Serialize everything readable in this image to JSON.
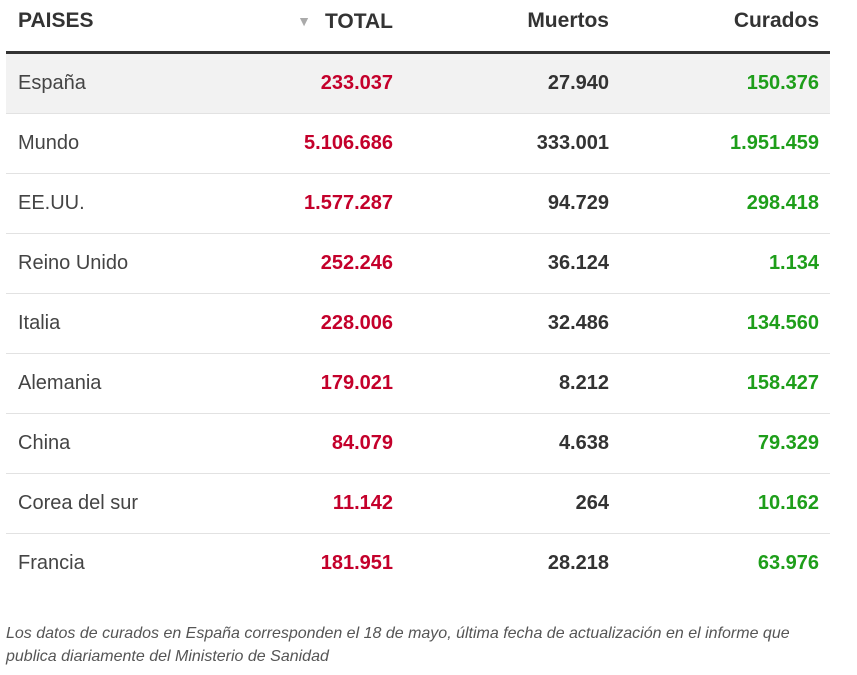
{
  "header": {
    "country": "PAISES",
    "sort_indicator": "▼",
    "total": "TOTAL",
    "deaths": "Muertos",
    "cured": "Curados"
  },
  "rows": [
    {
      "country": "España",
      "total": "233.037",
      "deaths": "27.940",
      "cured": "150.376"
    },
    {
      "country": "Mundo",
      "total": "5.106.686",
      "deaths": "333.001",
      "cured": "1.951.459"
    },
    {
      "country": "EE.UU.",
      "total": "1.577.287",
      "deaths": "94.729",
      "cured": "298.418"
    },
    {
      "country": "Reino Unido",
      "total": "252.246",
      "deaths": "36.124",
      "cured": "1.134"
    },
    {
      "country": "Italia",
      "total": "228.006",
      "deaths": "32.486",
      "cured": "134.560"
    },
    {
      "country": "Alemania",
      "total": "179.021",
      "deaths": "8.212",
      "cured": "158.427"
    },
    {
      "country": "China",
      "total": "84.079",
      "deaths": "4.638",
      "cured": "79.329"
    },
    {
      "country": "Corea del sur",
      "total": "11.142",
      "deaths": "264",
      "cured": "10.162"
    },
    {
      "country": "Francia",
      "total": "181.951",
      "deaths": "28.218",
      "cured": "63.976"
    }
  ],
  "note": "Los datos de curados en España corresponden el 18 de mayo, última fecha de actualización en el informe que publica diariamente del Ministerio de Sanidad",
  "colors": {
    "total": "#c4002b",
    "deaths": "#333333",
    "cured": "#1e9e1a",
    "highlight_row": "#f2f2f2"
  }
}
